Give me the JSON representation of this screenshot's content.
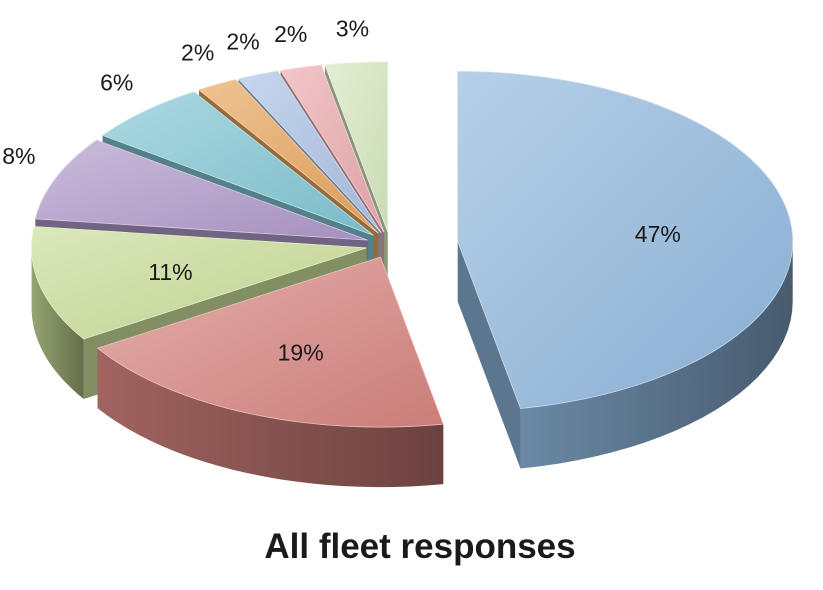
{
  "chart_data": {
    "type": "pie",
    "title": "All fleet responses",
    "exploded": true,
    "three_d": true,
    "legend": "none",
    "slices": [
      {
        "label": "47%",
        "value": 47,
        "color": "#8fb6dc"
      },
      {
        "label": "19%",
        "value": 19,
        "color": "#d6847f"
      },
      {
        "label": "11%",
        "value": 11,
        "color": "#c8dc97"
      },
      {
        "label": "8%",
        "value": 8,
        "color": "#ae98c8"
      },
      {
        "label": "6%",
        "value": 6,
        "color": "#80c5d3"
      },
      {
        "label": "2%",
        "value": 2,
        "color": "#e6a35a"
      },
      {
        "label": "2%",
        "value": 2,
        "color": "#a9c0e4"
      },
      {
        "label": "2%",
        "value": 2,
        "color": "#e9a9ae"
      },
      {
        "label": "3%",
        "value": 3,
        "color": "#d4e6bd"
      }
    ]
  }
}
